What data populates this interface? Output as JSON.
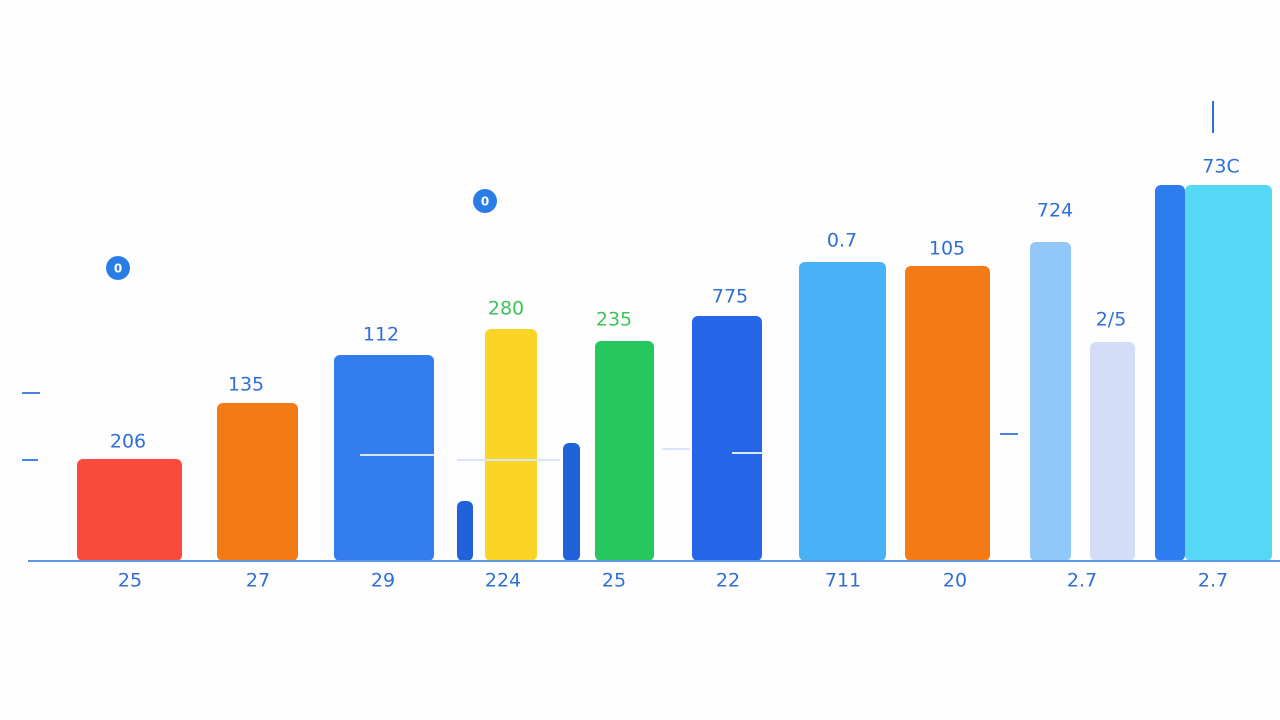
{
  "chart_data": {
    "type": "bar",
    "categories": [
      "25",
      "27",
      "29",
      "224",
      "25",
      "22",
      "711",
      "20",
      "2.7",
      "2.7"
    ],
    "ylim": [
      0,
      400
    ],
    "series": [
      {
        "colors": [
          "#fa4a3c",
          "#f47a16",
          "#327ced",
          "#fbd426",
          "#26c75c",
          "#2566e8",
          "#47b2f5",
          "#f47b16",
          "#91c8f7",
          "#2e7df0"
        ],
        "values": [
          102,
          158,
          206,
          232,
          220,
          245,
          299,
          295,
          319,
          376
        ]
      },
      {
        "colors": [
          null,
          null,
          null,
          "#2161d9",
          "#2161d9",
          null,
          null,
          null,
          "#d4ddf7",
          "#55d8f5"
        ],
        "values": [
          null,
          null,
          null,
          60,
          118,
          null,
          null,
          null,
          219,
          376
        ]
      }
    ],
    "annotations": [
      {
        "text": "206",
        "color": "#2f6fd6"
      },
      {
        "text": "135",
        "color": "#2f6fd6"
      },
      {
        "text": "112",
        "color": "#2f6fd6"
      },
      {
        "text": "280",
        "color": "#3cc35a"
      },
      {
        "text": "235",
        "color": "#3cc35a"
      },
      {
        "text": "775",
        "color": "#2f6fd6"
      },
      {
        "text": "0.7",
        "color": "#2f6fd6"
      },
      {
        "text": "105",
        "color": "#2f6fd6"
      },
      {
        "text": "724",
        "color": "#2f6fd6"
      },
      {
        "text": "2/5",
        "color": "#2f6fd6"
      },
      {
        "text": "73C",
        "color": "#2f6fd6"
      }
    ],
    "markers": [
      "0",
      "0"
    ]
  }
}
